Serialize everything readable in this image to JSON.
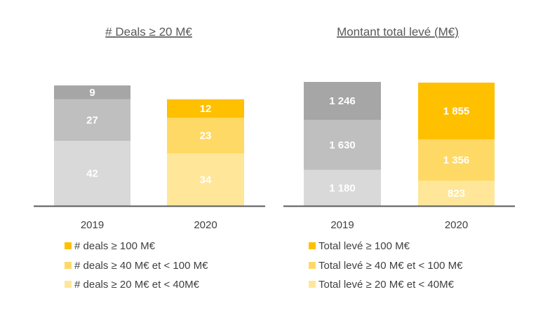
{
  "palette": {
    "gray_dark": "#a6a6a6",
    "gray_mid": "#bfbfbf",
    "gray_light": "#d9d9d9",
    "gold_dark": "#ffc000",
    "gold_mid": "#ffd966",
    "gold_light": "#ffe699",
    "axis": "#595959"
  },
  "chart_data": [
    {
      "type": "bar",
      "stacked": true,
      "title": "# Deals ≥ 20 M€",
      "categories": [
        "2019",
        "2020"
      ],
      "ylim": [
        0,
        78
      ],
      "grid": false,
      "legend_position": "bottom",
      "series": [
        {
          "name": "# deals ≥ 20 M€ et < 40M€",
          "values": [
            42,
            34
          ],
          "colors": [
            "#d9d9d9",
            "#ffe699"
          ]
        },
        {
          "name": "# deals ≥ 40 M€ et  < 100 M€",
          "values": [
            27,
            23
          ],
          "colors": [
            "#bfbfbf",
            "#ffd966"
          ]
        },
        {
          "name": "# deals ≥ 100 M€",
          "values": [
            9,
            12
          ],
          "colors": [
            "#a6a6a6",
            "#ffc000"
          ]
        }
      ],
      "data_labels": [
        [
          "42",
          "34"
        ],
        [
          "27",
          "23"
        ],
        [
          "9",
          "12"
        ]
      ]
    },
    {
      "type": "bar",
      "stacked": true,
      "title": "Montant total levé (M€)",
      "categories": [
        "2019",
        "2020"
      ],
      "ylim": [
        0,
        4056
      ],
      "grid": false,
      "legend_position": "bottom",
      "series": [
        {
          "name": "Total levé ≥ 20 M€ et < 40M€",
          "values": [
            1180,
            823
          ],
          "colors": [
            "#d9d9d9",
            "#ffe699"
          ]
        },
        {
          "name": "Total levé ≥ 40 M€ et  < 100 M€",
          "values": [
            1630,
            1356
          ],
          "colors": [
            "#bfbfbf",
            "#ffd966"
          ]
        },
        {
          "name": "Total levé ≥ 100 M€",
          "values": [
            1246,
            1855
          ],
          "colors": [
            "#a6a6a6",
            "#ffc000"
          ]
        }
      ],
      "data_labels": [
        [
          "1 180",
          "823"
        ],
        [
          "1 630",
          "1 356"
        ],
        [
          "1 246",
          "1 855"
        ]
      ]
    }
  ]
}
